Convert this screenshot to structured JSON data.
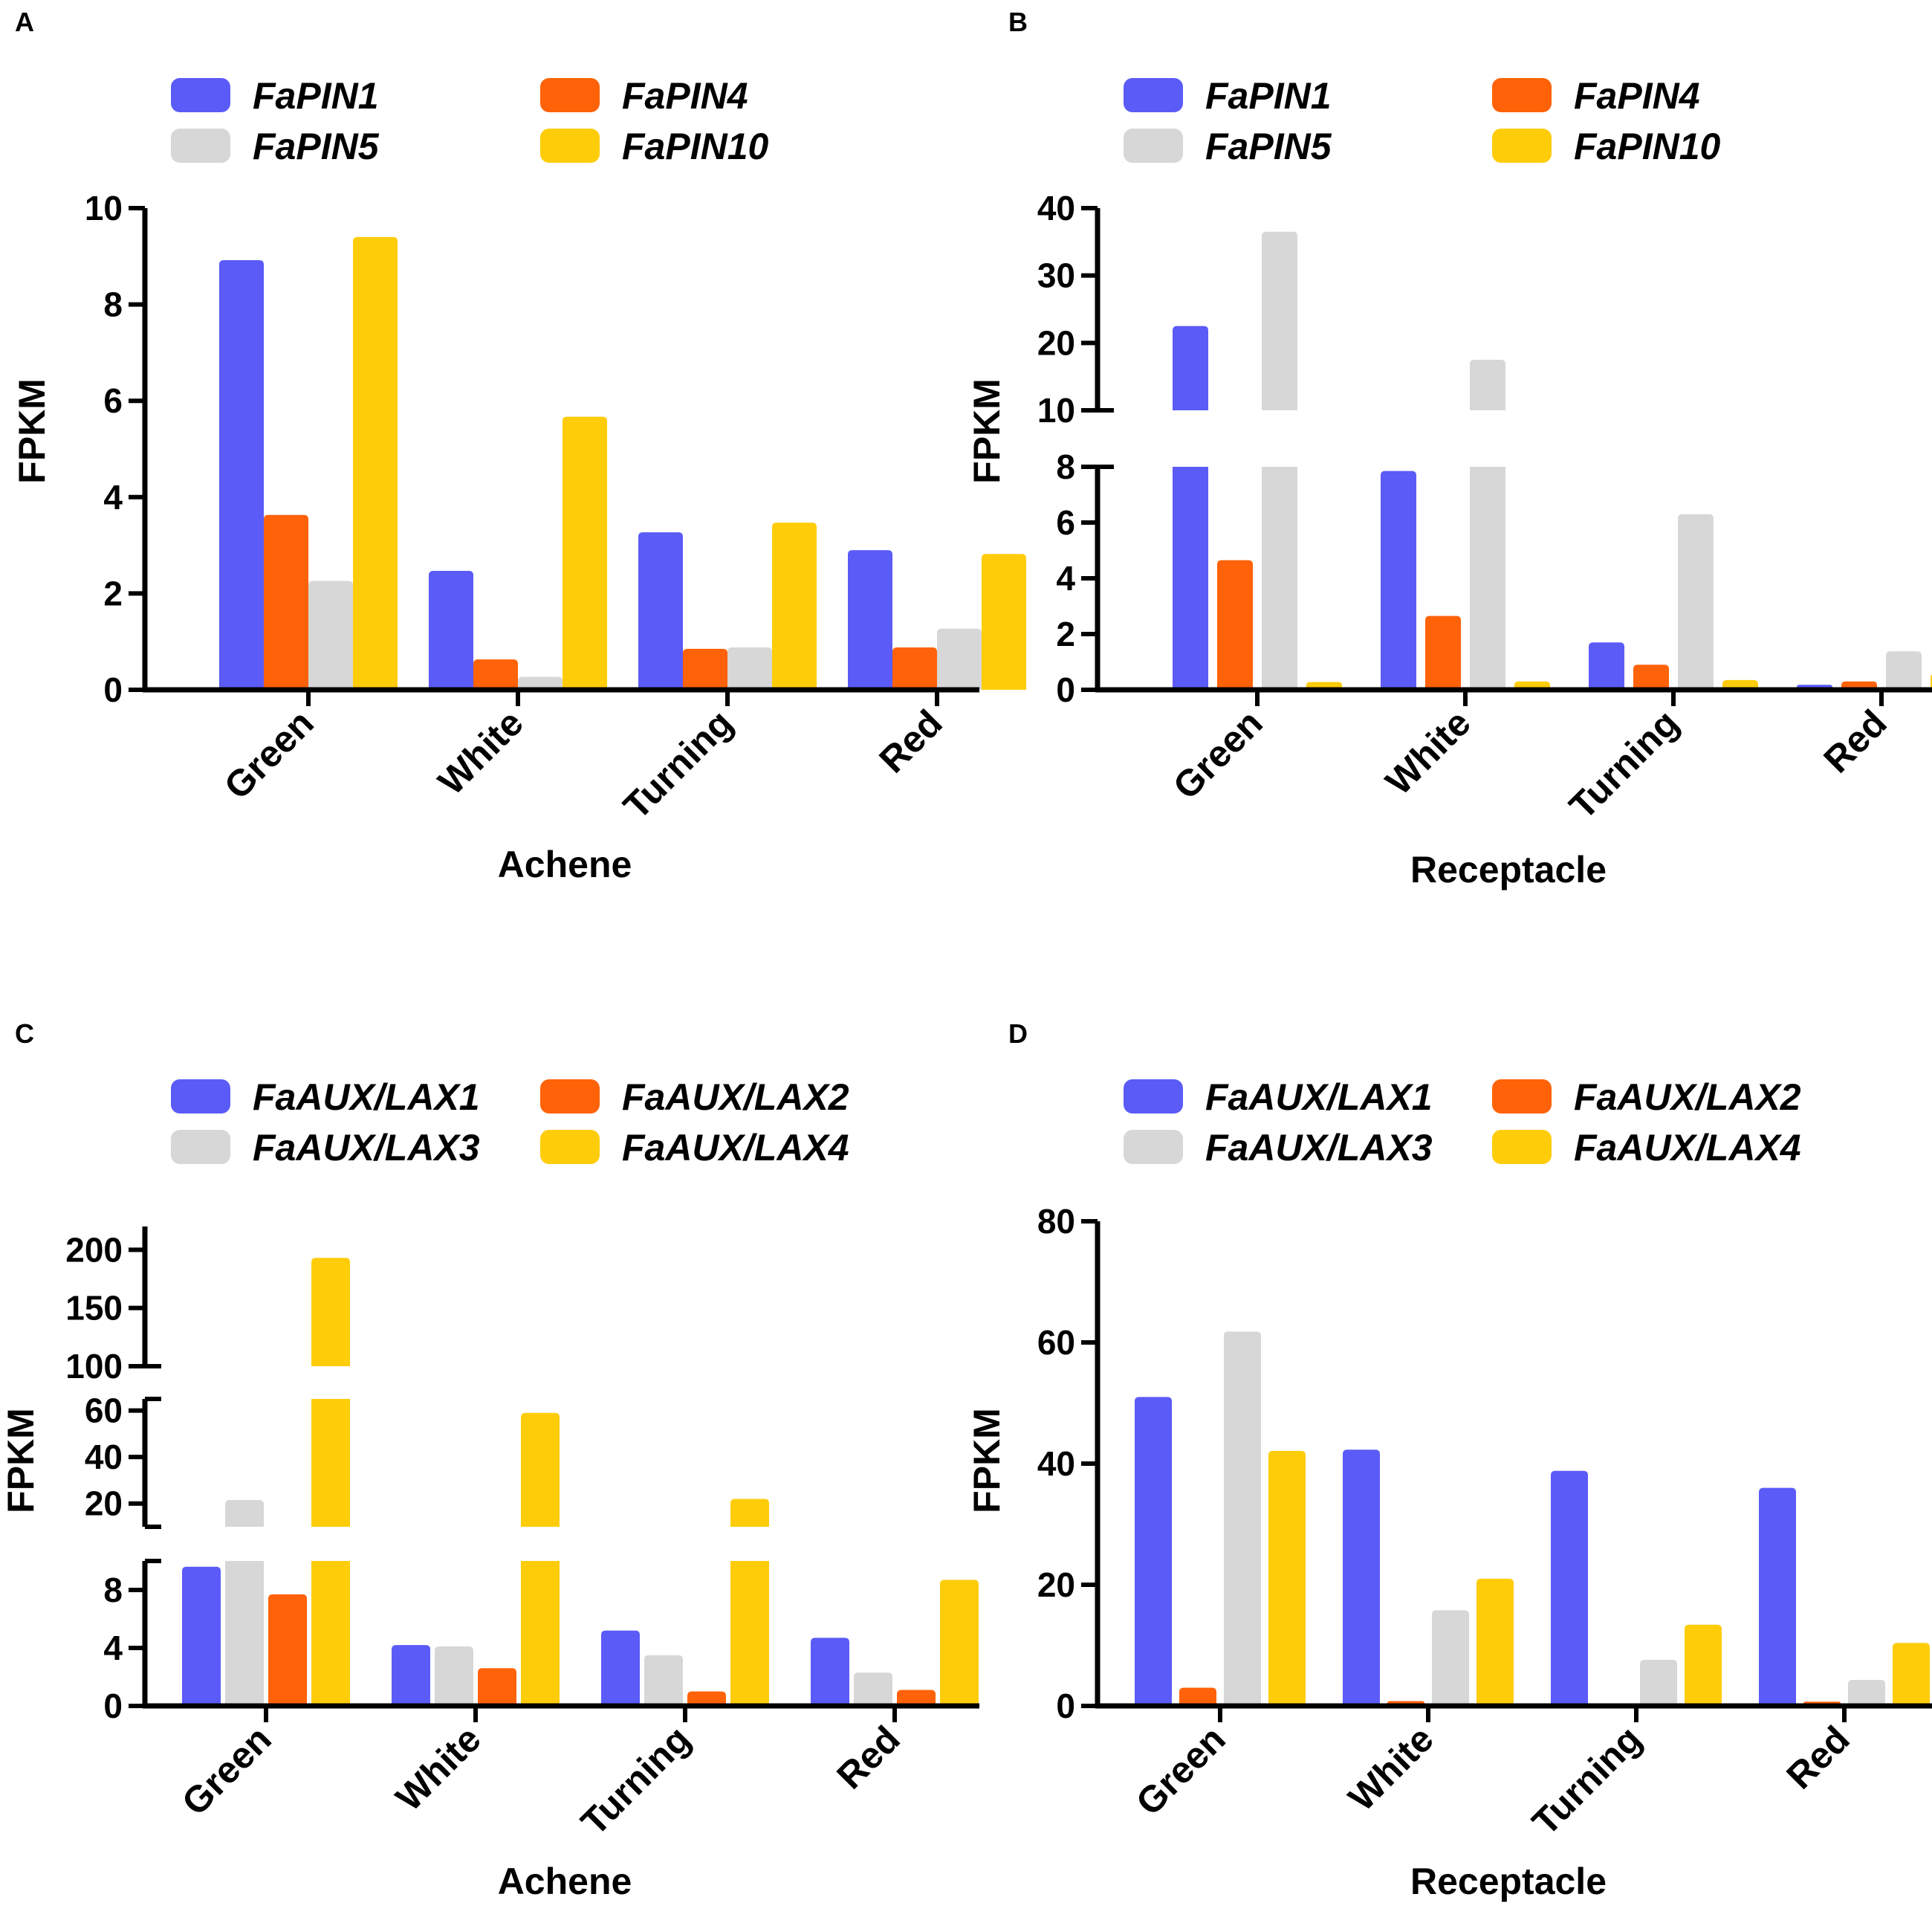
{
  "colors": {
    "blue": "#5B5BF7",
    "orange": "#FF6208",
    "gray": "#D7D7D7",
    "yellow": "#FFCC0A"
  },
  "chart_data": [
    {
      "panel": "A",
      "type": "bar",
      "title": "",
      "categories": [
        "Green",
        "White",
        "Turning",
        "Red"
      ],
      "series": [
        {
          "name": "FaPIN1",
          "color": "blue",
          "values": [
            8.92,
            2.47,
            3.27,
            2.9
          ]
        },
        {
          "name": "FaPIN4",
          "color": "orange",
          "values": [
            3.63,
            0.63,
            0.85,
            0.88
          ]
        },
        {
          "name": "FaPIN5",
          "color": "gray",
          "values": [
            2.26,
            0.27,
            0.88,
            1.27
          ]
        },
        {
          "name": "FaPIN10",
          "color": "yellow",
          "values": [
            9.4,
            5.67,
            3.47,
            2.82
          ]
        }
      ],
      "legend_order": [
        0,
        1,
        2,
        3
      ],
      "xlabel": "Achene",
      "ylabel": "FPKM",
      "ylim": [
        0,
        10
      ],
      "yticks": [
        0,
        2,
        4,
        6,
        8,
        10
      ]
    },
    {
      "panel": "B",
      "type": "bar",
      "title": "",
      "categories": [
        "Green",
        "White",
        "Turning",
        "Red"
      ],
      "series": [
        {
          "name": "FaPIN1",
          "color": "blue",
          "values": [
            22.5,
            7.85,
            1.7,
            0.18
          ]
        },
        {
          "name": "FaPIN4",
          "color": "orange",
          "values": [
            4.65,
            2.65,
            0.9,
            0.3
          ]
        },
        {
          "name": "FaPIN5",
          "color": "gray",
          "values": [
            36.5,
            17.5,
            6.3,
            1.38
          ]
        },
        {
          "name": "FaPIN10",
          "color": "yellow",
          "values": [
            0.28,
            0.3,
            0.35,
            0.58
          ]
        }
      ],
      "legend_order": [
        0,
        1,
        2,
        3
      ],
      "xlabel": "Receptacle",
      "ylabel": "FPKM",
      "axis_segments": [
        {
          "range": [
            0,
            8
          ],
          "ticks": [
            0,
            2,
            4,
            6,
            8
          ]
        },
        {
          "range": [
            10,
            40
          ],
          "ticks": [
            10,
            20,
            30,
            40
          ]
        }
      ]
    },
    {
      "panel": "C",
      "type": "bar",
      "title": "",
      "categories": [
        "Green",
        "White",
        "Turning",
        "Red"
      ],
      "series": [
        {
          "name": "FaAUX/LAX1",
          "color": "blue",
          "values": [
            9.6,
            4.2,
            5.2,
            4.7
          ]
        },
        {
          "name": "FaAUX/LAX3",
          "color": "gray",
          "values": [
            21.5,
            4.1,
            3.5,
            2.3
          ]
        },
        {
          "name": "FaAUX/LAX2",
          "color": "orange",
          "values": [
            7.7,
            2.6,
            1.0,
            1.1
          ]
        },
        {
          "name": "FaAUX/LAX4",
          "color": "yellow",
          "values": [
            193,
            59,
            22,
            8.7
          ]
        }
      ],
      "legend_order": [
        0,
        2,
        1,
        3
      ],
      "xlabel": "Achene",
      "ylabel": "FPKM",
      "axis_segments": [
        {
          "range": [
            0,
            10
          ],
          "ticks": [
            0,
            4,
            8
          ]
        },
        {
          "range": [
            10,
            65
          ],
          "ticks": [
            20,
            40,
            60
          ]
        },
        {
          "range": [
            100,
            220
          ],
          "ticks": [
            100,
            150,
            200
          ]
        }
      ]
    },
    {
      "panel": "D",
      "type": "bar",
      "title": "",
      "categories": [
        "Green",
        "White",
        "Turning",
        "Red"
      ],
      "series": [
        {
          "name": "FaAUX/LAX1",
          "color": "blue",
          "values": [
            51,
            42.3,
            38.8,
            36
          ]
        },
        {
          "name": "FaAUX/LAX2",
          "color": "orange",
          "values": [
            3.0,
            0.8,
            0.4,
            0.7
          ]
        },
        {
          "name": "FaAUX/LAX3",
          "color": "gray",
          "values": [
            61.8,
            15.8,
            7.6,
            4.3
          ]
        },
        {
          "name": "FaAUX/LAX4",
          "color": "yellow",
          "values": [
            42.1,
            21,
            13.4,
            10.4
          ]
        }
      ],
      "legend_order": [
        0,
        1,
        2,
        3
      ],
      "xlabel": "Receptacle",
      "ylabel": "FPKM",
      "ylim": [
        0,
        80
      ],
      "yticks": [
        0,
        20,
        40,
        60,
        80
      ]
    }
  ]
}
